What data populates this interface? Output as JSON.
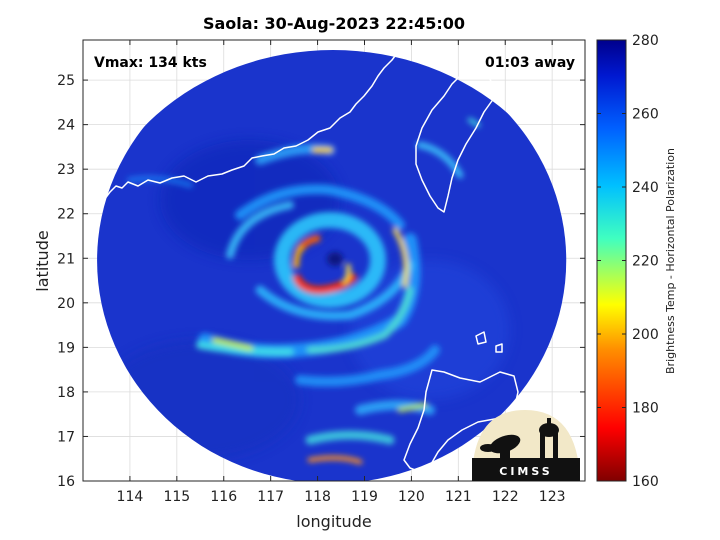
{
  "chart_data": {
    "type": "heatmap",
    "title": "Saola: 30-Aug-2023 22:45:00",
    "xlabel": "longitude",
    "ylabel": "latitude",
    "xlim": [
      113,
      123.7
    ],
    "ylim": [
      16,
      25.9
    ],
    "xticks": [
      114,
      115,
      116,
      117,
      118,
      119,
      120,
      121,
      122,
      123
    ],
    "yticks": [
      16,
      17,
      18,
      19,
      20,
      21,
      22,
      23,
      24,
      25
    ],
    "colorbar": {
      "label": "Brightness Temp - Horizontal Polarization",
      "range": [
        160,
        280
      ],
      "ticks": [
        160,
        180,
        200,
        220,
        240,
        260,
        280
      ]
    },
    "annotations": {
      "vmax": "Vmax: 134 kts",
      "time_offset": "01:03 away"
    },
    "storm_center": {
      "lon": 118.4,
      "lat": 21.0
    },
    "swath": {
      "center_lon": 118.3,
      "center_lat": 20.95,
      "radius_deg": 5.0
    },
    "grid": true,
    "logo": "CIMSS"
  },
  "colors": {
    "background": "#ffffff",
    "field_base": "#1830c8",
    "coastline": "#ffffff"
  }
}
